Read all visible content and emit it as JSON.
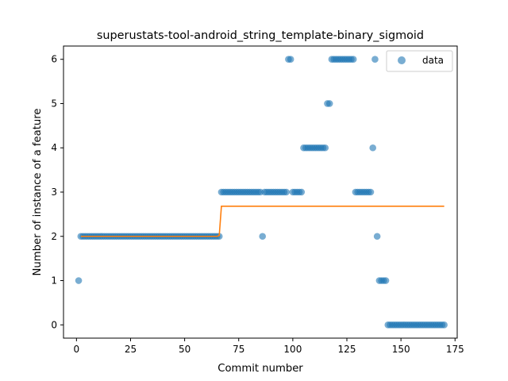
{
  "chart_data": {
    "type": "scatter",
    "title": "superustats-tool-android_string_template-binary_sigmoid",
    "xlabel": "Commit number",
    "ylabel": "Number of instance of a feature",
    "xlim": [
      -6,
      176
    ],
    "ylim": [
      -0.3,
      6.3
    ],
    "xticks": [
      0,
      25,
      50,
      75,
      100,
      125,
      150,
      175
    ],
    "yticks": [
      0,
      1,
      2,
      3,
      4,
      5,
      6
    ],
    "legend": {
      "position": "top-right",
      "entries": [
        "data"
      ]
    },
    "grid": false,
    "colors": {
      "data": "#1f77b4",
      "fit": "#ff7f0e"
    },
    "series": [
      {
        "name": "data",
        "kind": "scatter",
        "x": [
          1,
          2,
          3,
          4,
          5,
          6,
          7,
          8,
          9,
          10,
          11,
          12,
          13,
          14,
          15,
          16,
          17,
          18,
          19,
          20,
          21,
          22,
          23,
          24,
          25,
          26,
          27,
          28,
          29,
          30,
          31,
          32,
          33,
          34,
          35,
          36,
          37,
          38,
          39,
          40,
          41,
          42,
          43,
          44,
          45,
          46,
          47,
          48,
          49,
          50,
          51,
          52,
          53,
          54,
          55,
          56,
          57,
          58,
          59,
          60,
          61,
          62,
          63,
          64,
          65,
          66,
          67,
          68,
          69,
          70,
          71,
          72,
          73,
          74,
          75,
          76,
          77,
          78,
          79,
          80,
          81,
          82,
          83,
          84,
          85,
          86,
          87,
          88,
          89,
          90,
          91,
          92,
          93,
          94,
          95,
          96,
          97,
          98,
          99,
          100,
          101,
          102,
          103,
          104,
          105,
          106,
          107,
          108,
          109,
          110,
          111,
          112,
          113,
          114,
          115,
          116,
          117,
          118,
          119,
          120,
          121,
          122,
          123,
          124,
          125,
          126,
          127,
          128,
          129,
          130,
          131,
          132,
          133,
          134,
          135,
          136,
          137,
          138,
          139,
          140,
          141,
          142,
          143,
          144,
          145,
          146,
          147,
          148,
          149,
          150,
          151,
          152,
          153,
          154,
          155,
          156,
          157,
          158,
          159,
          160,
          161,
          162,
          163,
          164,
          165,
          166,
          167,
          168,
          169,
          170
        ],
        "y": [
          1,
          2,
          2,
          2,
          2,
          2,
          2,
          2,
          2,
          2,
          2,
          2,
          2,
          2,
          2,
          2,
          2,
          2,
          2,
          2,
          2,
          2,
          2,
          2,
          2,
          2,
          2,
          2,
          2,
          2,
          2,
          2,
          2,
          2,
          2,
          2,
          2,
          2,
          2,
          2,
          2,
          2,
          2,
          2,
          2,
          2,
          2,
          2,
          2,
          2,
          2,
          2,
          2,
          2,
          2,
          2,
          2,
          2,
          2,
          2,
          2,
          2,
          2,
          2,
          2,
          2,
          3,
          3,
          3,
          3,
          3,
          3,
          3,
          3,
          3,
          3,
          3,
          3,
          3,
          3,
          3,
          3,
          3,
          3,
          3,
          2,
          3,
          3,
          3,
          3,
          3,
          3,
          3,
          3,
          3,
          3,
          3,
          6,
          6,
          3,
          3,
          3,
          3,
          3,
          4,
          4,
          4,
          4,
          4,
          4,
          4,
          4,
          4,
          4,
          4,
          5,
          5,
          6,
          6,
          6,
          6,
          6,
          6,
          6,
          6,
          6,
          6,
          6,
          3,
          3,
          3,
          3,
          3,
          3,
          3,
          3,
          4,
          6,
          2,
          1,
          1,
          1,
          1,
          0,
          0,
          0,
          0,
          0,
          0,
          0,
          0,
          0,
          0,
          0,
          0,
          0,
          0,
          0,
          0,
          0,
          0,
          0,
          0,
          0,
          0,
          0,
          0,
          0,
          0,
          0
        ]
      },
      {
        "name": "",
        "kind": "line",
        "x": [
          2,
          65,
          66,
          67,
          170
        ],
        "y": [
          2,
          2,
          2.02,
          2.68,
          2.68
        ]
      }
    ]
  }
}
